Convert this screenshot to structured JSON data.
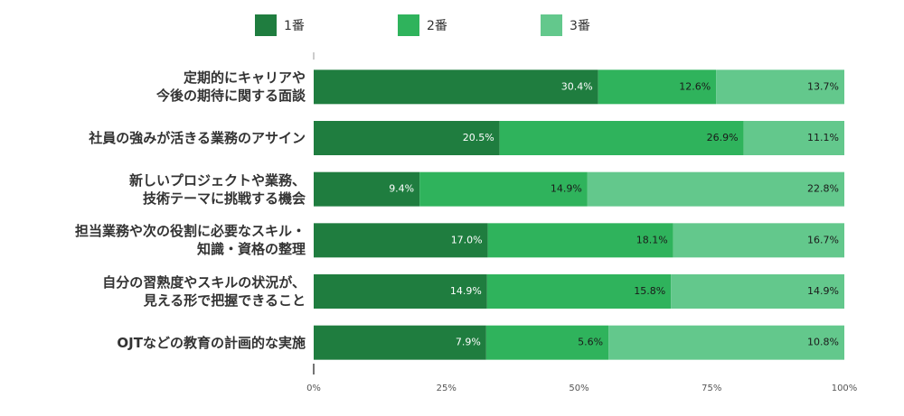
{
  "chart_data": {
    "type": "bar",
    "orientation": "horizontal",
    "stacked": "percent",
    "categories": [
      "定期的にキャリアや\n今後の期待に関する面談",
      "社員の強みが活きる業務のアサイン",
      "新しいプロジェクトや業務、\n技術テーマに挑戦する機会",
      "担当業務や次の役割に必要なスキル・\n知識・資格の整理",
      "自分の習熟度やスキルの状況が、\n見える形で把握できること",
      "OJTなどの教育の計画的な実施"
    ],
    "series": [
      {
        "name": "1番",
        "color": "#1f7d3f",
        "values": [
          30.4,
          20.5,
          9.4,
          17.0,
          14.9,
          7.9
        ],
        "value_labels": [
          "30.4%",
          "20.5%",
          "9.4%",
          "17.0%",
          "14.9%",
          "7.9%"
        ]
      },
      {
        "name": "2番",
        "color": "#2fb35c",
        "values": [
          12.6,
          26.9,
          14.9,
          18.1,
          15.8,
          5.6
        ],
        "value_labels": [
          "12.6%",
          "26.9%",
          "14.9%",
          "18.1%",
          "15.8%",
          "5.6%"
        ]
      },
      {
        "name": "3番",
        "color": "#63c88c",
        "values": [
          13.7,
          11.1,
          22.8,
          16.7,
          14.9,
          10.8
        ],
        "value_labels": [
          "13.7%",
          "11.1%",
          "22.8%",
          "16.7%",
          "14.9%",
          "10.8%"
        ]
      }
    ],
    "xlim": [
      0,
      100
    ],
    "xticks": [
      {
        "value": 0,
        "label": "0%"
      },
      {
        "value": 25,
        "label": "25%"
      },
      {
        "value": 50,
        "label": "50%"
      },
      {
        "value": 75,
        "label": "75%"
      },
      {
        "value": 100,
        "label": "100%"
      }
    ],
    "legend": "top"
  }
}
